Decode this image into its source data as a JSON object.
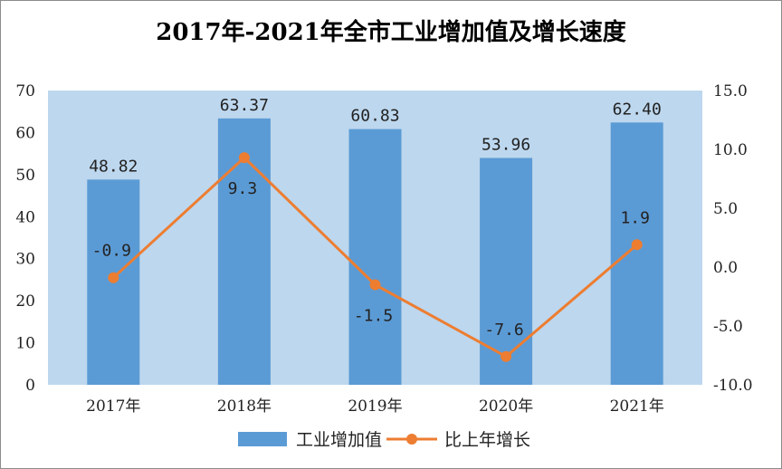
{
  "chart_data": {
    "type": "bar",
    "title": "2017年-2021年全市工业增加值及增长速度",
    "categories": [
      "2017年",
      "2018年",
      "2019年",
      "2020年",
      "2021年"
    ],
    "series": [
      {
        "name": "工业增加值",
        "type": "bar",
        "axis": "left",
        "values": [
          48.82,
          63.37,
          60.83,
          53.96,
          62.4
        ],
        "labels": [
          "48.82",
          "63.37",
          "60.83",
          "53.96",
          "62.40"
        ],
        "color": "#5b9bd5"
      },
      {
        "name": "比上年增长",
        "type": "line",
        "axis": "right",
        "values": [
          -0.9,
          9.3,
          -1.5,
          -7.6,
          1.9
        ],
        "labels": [
          "-0.9",
          "9.3",
          "-1.5",
          "-7.6",
          "1.9"
        ],
        "color": "#ed7d31"
      }
    ],
    "y_left": {
      "min": 0,
      "max": 70,
      "ticks": [
        "0",
        "10",
        "20",
        "30",
        "40",
        "50",
        "60",
        "70"
      ]
    },
    "y_right": {
      "min": -10,
      "max": 15,
      "ticks": [
        "-10.0",
        "-5.0",
        "0.0",
        "5.0",
        "10.0",
        "15.0"
      ]
    },
    "plot_background": "#bdd7ee",
    "grid": false,
    "legend_position": "bottom"
  }
}
